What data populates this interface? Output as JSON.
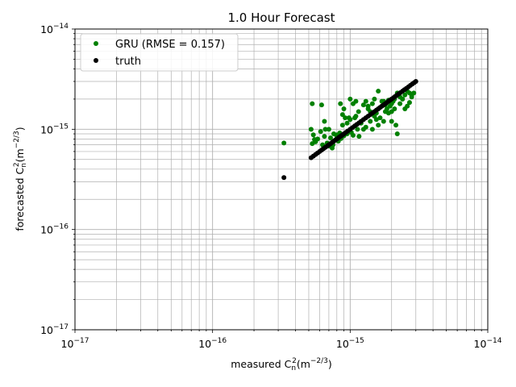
{
  "chart_data": {
    "type": "scatter",
    "title": "1.0 Hour Forecast",
    "xlabel": {
      "prefix": "measured C",
      "sub": "n",
      "sup": "2",
      "unit_open": "(m",
      "unit_sup": "−2/3",
      "unit_close": ")"
    },
    "ylabel": {
      "prefix": "forecasted C",
      "sub": "n",
      "sup": "2",
      "unit_open": "(m",
      "unit_sup": "−2/3",
      "unit_close": ")"
    },
    "xscale": "log",
    "yscale": "log",
    "xlim": [
      1e-17,
      1e-14
    ],
    "ylim": [
      1e-17,
      1e-14
    ],
    "grid": "both major and minor",
    "legend_position": "top-left",
    "tick_labels": [
      {
        "base": "10",
        "exp": "−17",
        "value": 1e-17
      },
      {
        "base": "10",
        "exp": "−16",
        "value": 1e-16
      },
      {
        "base": "10",
        "exp": "−15",
        "value": 1e-15
      },
      {
        "base": "10",
        "exp": "−14",
        "value": 1e-14
      }
    ],
    "series": [
      {
        "name": "GRU (RMSE = 0.157)",
        "color": "#008000",
        "marker": "circle",
        "x": [
          3.3e-16,
          5.2e-16,
          5.3e-16,
          5.4e-16,
          5.6e-16,
          5.8e-16,
          6.1e-16,
          6.3e-16,
          6.5e-16,
          6.6e-16,
          6.8e-16,
          7e-16,
          7.2e-16,
          7.4e-16,
          7.6e-16,
          7.8e-16,
          8e-16,
          8.2e-16,
          8.4e-16,
          8.6e-16,
          8.8e-16,
          9e-16,
          9.2e-16,
          9.5e-16,
          9.8e-16,
          1e-15,
          1.02e-15,
          1.05e-15,
          1.08e-15,
          1.1e-15,
          1.13e-15,
          1.16e-15,
          1.2e-15,
          1.25e-15,
          1.3e-15,
          1.35e-15,
          1.4e-15,
          1.45e-15,
          1.5e-15,
          1.55e-15,
          1.6e-15,
          1.65e-15,
          1.7e-15,
          1.75e-15,
          1.8e-15,
          1.85e-15,
          1.9e-15,
          1.95e-15,
          2e-15,
          2.05e-15,
          2.1e-15,
          2.15e-15,
          2.2e-15,
          2.3e-15,
          2.4e-15,
          2.5e-15,
          2.6e-15,
          2.7e-15,
          2.8e-15,
          2.9e-15,
          5.3e-16,
          5.5e-16,
          6.2e-16,
          6.4e-16,
          7.5e-16,
          8.5e-16,
          9e-16,
          1e-15,
          1.1e-15,
          1.2e-15,
          1.25e-15,
          1.4e-15,
          1.5e-15,
          1.6e-15,
          1.7e-15,
          1.8e-15,
          2e-15,
          2.2e-15,
          2.5e-15,
          6.5e-16,
          8.8e-16,
          1.05e-15,
          1.35e-15,
          1.55e-15,
          1.9e-15,
          2.1e-15,
          2.4e-15,
          2.8e-15,
          7e-16,
          9.5e-16,
          1.3e-15,
          1.75e-15,
          2.3e-15,
          2.6e-15,
          1.15e-15,
          1.45e-15,
          2.7e-15,
          8e-16,
          1.6e-15,
          2e-15
        ],
        "y": [
          7.3e-16,
          1e-15,
          7.2e-16,
          8.8e-16,
          7.5e-16,
          8e-16,
          9.5e-16,
          7e-16,
          8.5e-16,
          1e-15,
          7.3e-16,
          6.8e-16,
          8.2e-16,
          6.5e-16,
          9e-16,
          7.8e-16,
          8.5e-16,
          7.6e-16,
          9.2e-16,
          8.1e-16,
          1.1e-15,
          8.6e-16,
          1.3e-15,
          9e-16,
          1.3e-15,
          1.25e-15,
          9.3e-16,
          8.7e-16,
          1.3e-15,
          1.35e-15,
          1e-15,
          8.5e-16,
          1.15e-15,
          1e-15,
          1.05e-15,
          1.6e-15,
          1.5e-15,
          1.8e-15,
          2e-15,
          1.45e-15,
          1.6e-15,
          1.3e-15,
          1.7e-15,
          1.9e-15,
          1.75e-15,
          1.6e-15,
          1.95e-15,
          1.7e-15,
          1.8e-15,
          1.9e-15,
          2e-15,
          1.1e-15,
          9e-16,
          2.1e-15,
          2e-15,
          2.2e-15,
          2.4e-15,
          2.3e-15,
          2.2e-15,
          2.3e-15,
          1.8e-15,
          7.9e-16,
          1.75e-15,
          6.7e-16,
          7e-16,
          1.8e-15,
          1.6e-15,
          2e-15,
          1.9e-15,
          1.2e-15,
          1.75e-15,
          1.2e-15,
          1.35e-15,
          2.4e-15,
          1.9e-15,
          1.5e-15,
          1.5e-15,
          2.3e-15,
          1.6e-15,
          1.2e-15,
          1.4e-15,
          1.8e-15,
          1.7e-15,
          1.25e-15,
          1.45e-15,
          1.6e-15,
          2e-15,
          2.1e-15,
          1e-15,
          1.15e-15,
          1.9e-15,
          1.2e-15,
          1.8e-15,
          1.7e-15,
          1.5e-15,
          1e-15,
          1.85e-15,
          8.8e-16,
          1.1e-15,
          1.2e-15
        ]
      },
      {
        "name": "truth",
        "color": "#000000",
        "marker": "circle",
        "x": [
          3.3e-16,
          5.2e-16,
          5.4e-16,
          5.6e-16,
          5.8e-16,
          6e-16,
          6.2e-16,
          6.4e-16,
          6.6e-16,
          6.8e-16,
          7e-16,
          7.2e-16,
          7.4e-16,
          7.6e-16,
          7.8e-16,
          8e-16,
          8.2e-16,
          8.4e-16,
          8.6e-16,
          8.8e-16,
          9e-16,
          9.3e-16,
          9.6e-16,
          1e-15,
          1.04e-15,
          1.08e-15,
          1.12e-15,
          1.16e-15,
          1.2e-15,
          1.25e-15,
          1.3e-15,
          1.35e-15,
          1.4e-15,
          1.45e-15,
          1.5e-15,
          1.55e-15,
          1.6e-15,
          1.65e-15,
          1.7e-15,
          1.75e-15,
          1.8e-15,
          1.85e-15,
          1.9e-15,
          1.95e-15,
          2e-15,
          2.06e-15,
          2.12e-15,
          2.18e-15,
          2.25e-15,
          2.32e-15,
          2.4e-15,
          2.48e-15,
          2.56e-15,
          2.65e-15,
          2.74e-15,
          2.83e-15,
          2.92e-15,
          3e-15
        ],
        "y": [
          3.3e-16,
          5.2e-16,
          5.4e-16,
          5.6e-16,
          5.8e-16,
          6e-16,
          6.2e-16,
          6.4e-16,
          6.6e-16,
          6.8e-16,
          7e-16,
          7.2e-16,
          7.4e-16,
          7.6e-16,
          7.8e-16,
          8e-16,
          8.2e-16,
          8.4e-16,
          8.6e-16,
          8.8e-16,
          9e-16,
          9.3e-16,
          9.6e-16,
          1e-15,
          1.04e-15,
          1.08e-15,
          1.12e-15,
          1.16e-15,
          1.2e-15,
          1.25e-15,
          1.3e-15,
          1.35e-15,
          1.4e-15,
          1.45e-15,
          1.5e-15,
          1.55e-15,
          1.6e-15,
          1.65e-15,
          1.7e-15,
          1.75e-15,
          1.8e-15,
          1.85e-15,
          1.9e-15,
          1.95e-15,
          2e-15,
          2.06e-15,
          2.12e-15,
          2.18e-15,
          2.25e-15,
          2.32e-15,
          2.4e-15,
          2.48e-15,
          2.56e-15,
          2.65e-15,
          2.74e-15,
          2.83e-15,
          2.92e-15,
          3e-15
        ]
      }
    ]
  }
}
